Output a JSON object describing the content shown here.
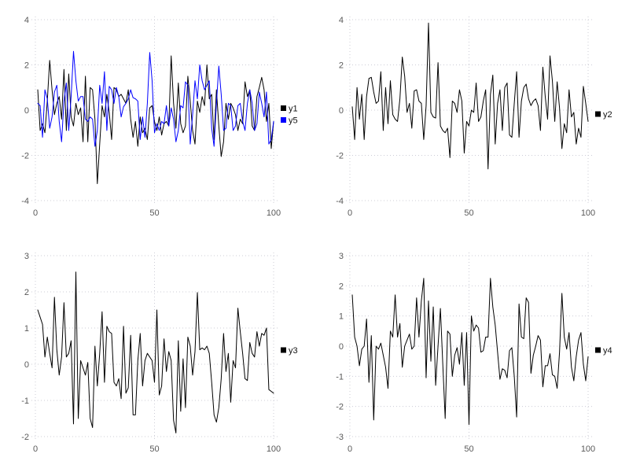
{
  "page": {
    "background": "#ffffff",
    "grid_color": "#ccccd6",
    "tick_label_color": "#595959",
    "legend_text_color": "#111111"
  },
  "chart_data": [
    {
      "id": "chart-y1-y5",
      "type": "line",
      "title": "",
      "xlabel": "",
      "ylabel": "",
      "grid": true,
      "legend_position": "right-middle",
      "x_range": [
        0,
        100
      ],
      "x_ticks": [
        0,
        50,
        100
      ],
      "ylim": [
        -4,
        4
      ],
      "y_ticks": [
        -4,
        -2,
        0,
        2,
        4
      ],
      "x_start": 1,
      "series": [
        {
          "name": "y1",
          "color": "#000000",
          "values": [
            0.9,
            -0.9,
            -0.6,
            -1.0,
            0.4,
            2.2,
            0.9,
            -0.2,
            0.3,
            0.6,
            -0.4,
            1.8,
            -0.9,
            1.6,
            -0.3,
            -0.7,
            0.3,
            -0.2,
            0.1,
            -1.4,
            1.5,
            -1.4,
            1.0,
            0.9,
            -0.4,
            -3.25,
            -1.5,
            0.2,
            -0.3,
            0.7,
            -0.1,
            -1.3,
            1.0,
            0.9,
            0.6,
            0.7,
            0.5,
            0.3,
            0.9,
            -0.4,
            -1.2,
            -0.5,
            -1.6,
            -0.3,
            -1.0,
            -0.8,
            -1.3,
            0.1,
            0.2,
            -0.5,
            -0.9,
            -0.3,
            -1.1,
            -0.6,
            -0.5,
            -0.7,
            2.4,
            0.3,
            -0.8,
            1.2,
            -0.6,
            -1.0,
            -0.7,
            1.5,
            0.4,
            -0.9,
            -1.5,
            0.4,
            -0.1,
            0.6,
            0.2,
            2.0,
            0.5,
            0.7,
            -1.3,
            0.9,
            -0.7,
            -2.05,
            -1.4,
            0.3,
            -0.4,
            0.3,
            0.1,
            -0.2,
            -0.9,
            -0.4,
            -0.6,
            1.25,
            0.6,
            0.9,
            -0.7,
            -0.9,
            0.6,
            1.0,
            1.45,
            0.9,
            -0.5,
            0.3,
            -1.7,
            -0.5
          ]
        },
        {
          "name": "y5",
          "color": "#0000ff",
          "values": [
            0.3,
            0.2,
            -1.2,
            0.9,
            0.5,
            -0.8,
            -0.3,
            0.8,
            1.1,
            -0.5,
            -1.4,
            0.4,
            1.2,
            -0.9,
            0.6,
            2.6,
            1.3,
            0.4,
            0.6,
            0.6,
            -0.4,
            -0.5,
            -0.3,
            -0.4,
            -1.6,
            -0.9,
            1.1,
            0.3,
            1.7,
            -0.9,
            1.05,
            0.9,
            0.3,
            1.0,
            0.6,
            -0.3,
            0.15,
            0.3,
            0.5,
            0.9,
            0.55,
            0.5,
            0.4,
            -1.3,
            -0.3,
            -1.2,
            0.3,
            2.55,
            1.3,
            -1.0,
            -0.6,
            -0.9,
            -0.5,
            -0.6,
            0.2,
            -0.7,
            0.1,
            -0.4,
            -1.4,
            -0.9,
            0.2,
            0.1,
            1.25,
            1.1,
            -1.5,
            -0.2,
            1.3,
            0.5,
            2.0,
            1.3,
            0.9,
            1.1,
            1.3,
            -0.8,
            -1.6,
            0.3,
            1.95,
            0.7,
            -0.9,
            -0.8,
            0.3,
            0.2,
            -0.9,
            -0.7,
            0.2,
            0.3,
            -0.5,
            -0.9,
            0.3,
            0.9,
            0.3,
            -0.9,
            -0.6,
            0.8,
            0.3,
            -0.3,
            0.8,
            -1.5,
            -1.3,
            -0.5
          ]
        }
      ]
    },
    {
      "id": "chart-y2",
      "type": "line",
      "title": "",
      "xlabel": "",
      "ylabel": "",
      "grid": true,
      "legend_position": "right-middle",
      "x_range": [
        0,
        100
      ],
      "x_ticks": [
        0,
        50,
        100
      ],
      "ylim": [
        -4,
        4
      ],
      "y_ticks": [
        -4,
        -2,
        0,
        2,
        4
      ],
      "x_start": 1,
      "series": [
        {
          "name": "y2",
          "color": "#000000",
          "values": [
            0.15,
            -1.3,
            1.0,
            -0.4,
            0.7,
            -1.3,
            0.6,
            1.4,
            1.45,
            0.8,
            0.3,
            0.4,
            1.7,
            -0.9,
            1.0,
            -0.6,
            1.3,
            -0.2,
            -0.4,
            -0.5,
            0.5,
            2.35,
            1.5,
            -0.1,
            0.3,
            -0.8,
            0.85,
            0.9,
            0.4,
            0.3,
            -1.3,
            0.2,
            3.85,
            -0.1,
            -0.3,
            -0.35,
            2.1,
            -0.7,
            -0.9,
            -1.0,
            -0.8,
            -2.1,
            0.4,
            0.3,
            -0.1,
            0.9,
            0.4,
            -1.9,
            -0.5,
            -0.7,
            0.0,
            -0.1,
            1.2,
            -0.5,
            -0.3,
            0.4,
            0.9,
            -2.6,
            0.7,
            1.55,
            -1.5,
            0.3,
            0.9,
            -0.9,
            1.0,
            1.2,
            -1.1,
            -1.2,
            0.3,
            1.7,
            -1.2,
            0.4,
            1.0,
            1.15,
            0.5,
            0.2,
            0.4,
            0.5,
            0.2,
            -0.9,
            1.9,
            0.6,
            -0.4,
            2.4,
            1.3,
            -0.5,
            1.25,
            0.1,
            -1.7,
            -0.6,
            -1.0,
            0.9,
            -0.3,
            -0.1,
            -1.5,
            -0.8,
            -1.2,
            1.05,
            0.3,
            -0.5
          ]
        }
      ]
    },
    {
      "id": "chart-y3",
      "type": "line",
      "title": "",
      "xlabel": "",
      "ylabel": "",
      "grid": true,
      "legend_position": "right-middle",
      "x_range": [
        0,
        100
      ],
      "x_ticks": [
        0,
        50,
        100
      ],
      "ylim": [
        -2,
        3
      ],
      "y_ticks": [
        -2,
        -1,
        0,
        1,
        2,
        3
      ],
      "x_start": 1,
      "series": [
        {
          "name": "y3",
          "color": "#000000",
          "values": [
            1.5,
            1.3,
            1.1,
            0.2,
            0.75,
            0.3,
            -0.1,
            1.85,
            0.4,
            -0.3,
            0.2,
            1.7,
            0.2,
            0.3,
            0.65,
            -1.65,
            2.55,
            -1.5,
            0.1,
            -0.1,
            -0.3,
            0.05,
            -1.5,
            -1.75,
            0.5,
            -0.6,
            0.3,
            1.45,
            -0.5,
            1.05,
            0.9,
            0.85,
            -0.5,
            -0.6,
            -0.4,
            -0.95,
            1.05,
            -0.8,
            -0.65,
            0.8,
            -1.4,
            -1.4,
            0.1,
            0.85,
            -0.6,
            0.1,
            0.3,
            0.2,
            0.1,
            -0.5,
            1.5,
            -0.85,
            -0.6,
            0.7,
            -0.2,
            0.35,
            0.1,
            -1.55,
            -1.9,
            0.65,
            -1.3,
            0.15,
            -1.2,
            0.75,
            0.5,
            -0.3,
            0.35,
            1.98,
            0.4,
            0.45,
            0.4,
            0.5,
            0.3,
            -0.5,
            -1.4,
            -1.6,
            -1.2,
            -0.4,
            0.85,
            -0.2,
            0.3,
            -1.05,
            0.1,
            -0.1,
            1.55,
            0.9,
            0.3,
            -0.4,
            -0.45,
            0.6,
            0.3,
            0.2,
            0.9,
            0.5,
            0.85,
            0.8,
            1.0,
            -0.7,
            -0.75,
            -0.8
          ]
        }
      ]
    },
    {
      "id": "chart-y4",
      "type": "line",
      "title": "",
      "xlabel": "",
      "ylabel": "",
      "grid": true,
      "legend_position": "right-middle",
      "x_range": [
        0,
        100
      ],
      "x_ticks": [
        0,
        50,
        100
      ],
      "ylim": [
        -3,
        3
      ],
      "y_ticks": [
        -3,
        -2,
        -1,
        0,
        1,
        2,
        3
      ],
      "x_start": 1,
      "series": [
        {
          "name": "y4",
          "color": "#000000",
          "values": [
            1.7,
            0.3,
            0.0,
            -0.65,
            -0.1,
            0.0,
            0.9,
            -1.2,
            0.35,
            -2.45,
            0.0,
            -0.1,
            0.1,
            -0.3,
            -0.7,
            -1.4,
            0.5,
            0.3,
            1.7,
            0.3,
            0.75,
            -0.7,
            0.0,
            0.2,
            0.4,
            -0.1,
            0.0,
            1.6,
            0.3,
            1.5,
            2.25,
            -1.05,
            1.5,
            -0.5,
            1.3,
            -1.3,
            0.0,
            1.25,
            -0.6,
            -2.4,
            0.5,
            0.4,
            -1.0,
            -0.3,
            -0.05,
            -0.6,
            0.45,
            -1.3,
            0.45,
            -2.6,
            1.0,
            0.5,
            0.7,
            0.6,
            -0.2,
            -0.15,
            0.3,
            0.3,
            2.25,
            1.3,
            0.7,
            -0.2,
            -1.1,
            -0.75,
            -0.8,
            -1.05,
            -0.15,
            -0.05,
            -1.0,
            -2.35,
            1.4,
            0.3,
            0.25,
            1.6,
            1.45,
            -0.9,
            -0.3,
            0.0,
            0.35,
            0.2,
            -1.35,
            -0.65,
            -0.65,
            -0.25,
            -0.95,
            -1.0,
            -1.4,
            -0.2,
            1.75,
            0.3,
            -0.1,
            0.45,
            -0.7,
            -1.15,
            -0.35,
            0.2,
            0.45,
            -0.6,
            -1.15,
            -0.35
          ]
        }
      ]
    }
  ]
}
